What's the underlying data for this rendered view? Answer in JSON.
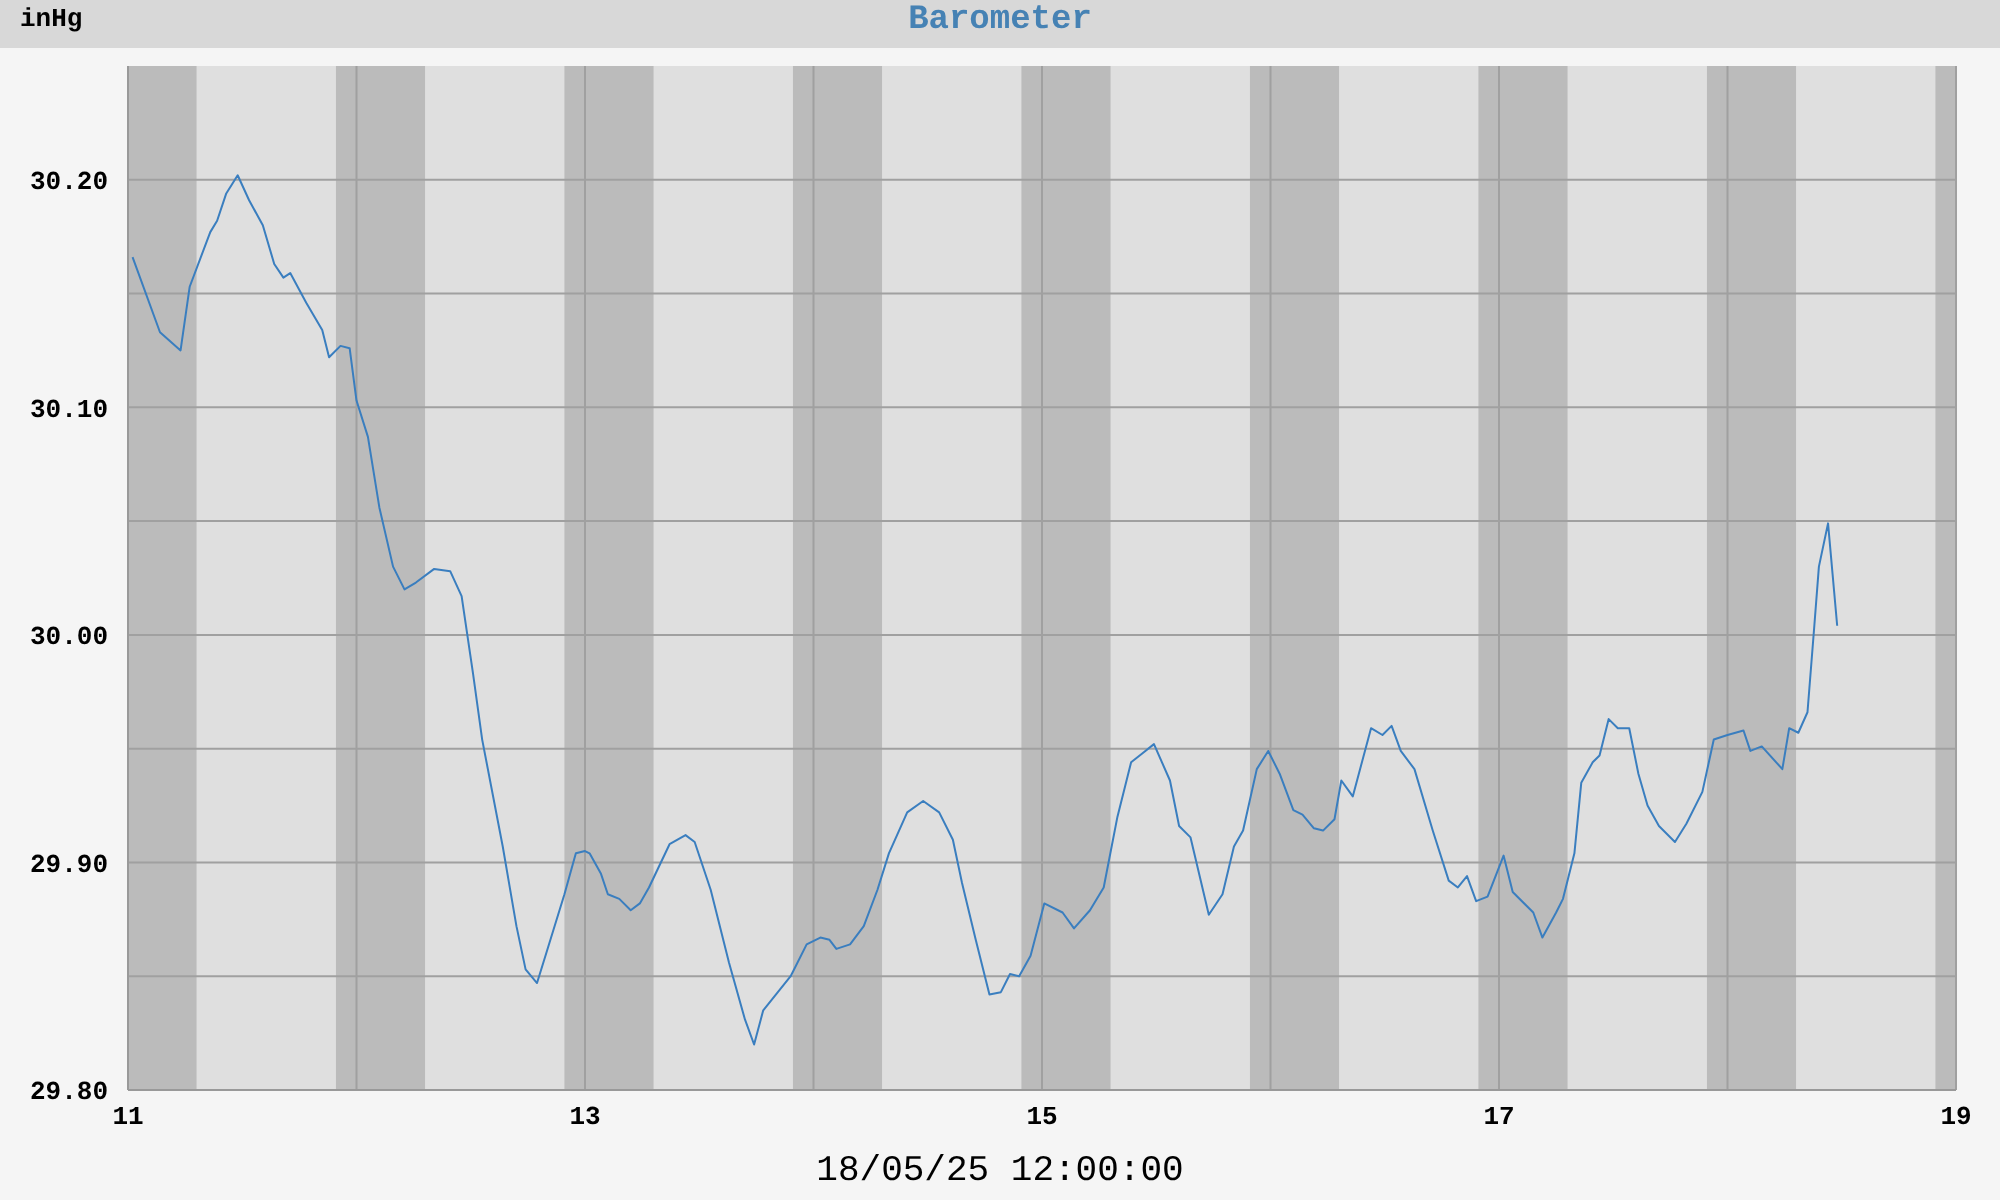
{
  "chart_data": {
    "type": "line",
    "title": "Barometer",
    "ylabel": "inHg",
    "xlabel": "18/05/25 12:00:00",
    "xlim": [
      11,
      19
    ],
    "xticks": [
      11,
      {
        "value": 12,
        "label": null
      },
      13,
      {
        "value": 14,
        "label": null
      },
      15,
      {
        "value": 16,
        "label": null
      },
      17,
      {
        "value": 18,
        "label": null
      },
      19
    ],
    "ylim": [
      29.8,
      30.25
    ],
    "yticks": [
      {
        "value": 29.8,
        "label": "29.80"
      },
      {
        "value": 29.85,
        "label": null
      },
      {
        "value": 29.9,
        "label": "29.90"
      },
      {
        "value": 29.95,
        "label": null
      },
      {
        "value": 30.0,
        "label": "30.00"
      },
      {
        "value": 30.05,
        "label": null
      },
      {
        "value": 30.1,
        "label": "30.10"
      },
      {
        "value": 30.15,
        "label": null
      },
      {
        "value": 30.2,
        "label": "30.20"
      }
    ],
    "grid": true,
    "legend": false,
    "marker": "none",
    "line_style": "solid",
    "bands": [
      {
        "axis": "x",
        "from": 11,
        "to": 11.3,
        "color": "#bbbbbb"
      },
      {
        "axis": "x",
        "from": 11.91,
        "to": 12.3,
        "color": "#bbbbbb"
      },
      {
        "axis": "x",
        "from": 12.91,
        "to": 13.3,
        "color": "#bbbbbb"
      },
      {
        "axis": "x",
        "from": 13.91,
        "to": 14.3,
        "color": "#bbbbbb"
      },
      {
        "axis": "x",
        "from": 14.91,
        "to": 15.3,
        "color": "#bbbbbb"
      },
      {
        "axis": "x",
        "from": 15.91,
        "to": 16.3,
        "color": "#bbbbbb"
      },
      {
        "axis": "x",
        "from": 16.91,
        "to": 17.3,
        "color": "#bbbbbb"
      },
      {
        "axis": "x",
        "from": 17.91,
        "to": 18.3,
        "color": "#bbbbbb"
      },
      {
        "axis": "x",
        "from": 18.91,
        "to": 19,
        "color": "#bbbbbb"
      }
    ],
    "series": [
      {
        "color": "#3a7ebf",
        "x": [
          11.02,
          11.14,
          11.23,
          11.27,
          11.36,
          11.39,
          11.43,
          11.48,
          11.53,
          11.59,
          11.64,
          11.68,
          11.71,
          11.78,
          11.85,
          11.88,
          11.93,
          11.97,
          12.0,
          12.05,
          12.1,
          12.16,
          12.21,
          12.26,
          12.34,
          12.41,
          12.46,
          12.51,
          12.55,
          12.64,
          12.7,
          12.74,
          12.79,
          12.83,
          12.91,
          12.96,
          13.0,
          13.02,
          13.07,
          13.1,
          13.15,
          13.2,
          13.24,
          13.28,
          13.37,
          13.44,
          13.48,
          13.55,
          13.63,
          13.7,
          13.74,
          13.78,
          13.9,
          13.97,
          14.03,
          14.07,
          14.1,
          14.16,
          14.22,
          14.28,
          14.33,
          14.41,
          14.48,
          14.55,
          14.61,
          14.65,
          14.71,
          14.77,
          14.82,
          14.86,
          14.9,
          14.95,
          15.01,
          15.09,
          15.14,
          15.21,
          15.27,
          15.33,
          15.39,
          15.44,
          15.49,
          15.56,
          15.6,
          15.65,
          15.73,
          15.79,
          15.84,
          15.88,
          15.94,
          15.99,
          16.04,
          16.1,
          16.14,
          16.19,
          16.23,
          16.28,
          16.31,
          16.36,
          16.44,
          16.49,
          16.53,
          16.57,
          16.63,
          16.71,
          16.78,
          16.82,
          16.86,
          16.9,
          16.95,
          17.02,
          17.06,
          17.15,
          17.19,
          17.25,
          17.28,
          17.33,
          17.36,
          17.41,
          17.44,
          17.48,
          17.52,
          17.57,
          17.61,
          17.65,
          17.7,
          17.77,
          17.82,
          17.89,
          17.94,
          18.0,
          18.07,
          18.1,
          18.15,
          18.24,
          18.27,
          18.31,
          18.35,
          18.38,
          18.4,
          18.44,
          18.48
        ],
        "values": [
          30.166,
          30.133,
          30.125,
          30.153,
          30.177,
          30.182,
          30.194,
          30.202,
          30.191,
          30.18,
          30.163,
          30.157,
          30.159,
          30.146,
          30.134,
          30.122,
          30.127,
          30.126,
          30.103,
          30.087,
          30.056,
          30.03,
          30.02,
          30.023,
          30.029,
          30.028,
          30.017,
          29.983,
          29.954,
          29.907,
          29.872,
          29.853,
          29.847,
          29.86,
          29.886,
          29.904,
          29.905,
          29.904,
          29.895,
          29.886,
          29.884,
          29.879,
          29.882,
          29.889,
          29.908,
          29.912,
          29.909,
          29.888,
          29.856,
          29.831,
          29.82,
          29.835,
          29.85,
          29.864,
          29.867,
          29.866,
          29.862,
          29.864,
          29.872,
          29.888,
          29.904,
          29.922,
          29.927,
          29.922,
          29.91,
          29.891,
          29.866,
          29.842,
          29.843,
          29.851,
          29.85,
          29.859,
          29.882,
          29.878,
          29.871,
          29.879,
          29.889,
          29.92,
          29.944,
          29.948,
          29.952,
          29.936,
          29.916,
          29.911,
          29.877,
          29.886,
          29.907,
          29.914,
          29.941,
          29.949,
          29.939,
          29.923,
          29.921,
          29.915,
          29.914,
          29.919,
          29.936,
          29.929,
          29.959,
          29.956,
          29.96,
          29.949,
          29.941,
          29.914,
          29.892,
          29.889,
          29.894,
          29.883,
          29.885,
          29.903,
          29.887,
          29.878,
          29.867,
          29.878,
          29.884,
          29.904,
          29.935,
          29.944,
          29.947,
          29.963,
          29.959,
          29.959,
          29.939,
          29.925,
          29.916,
          29.909,
          29.917,
          29.931,
          29.954,
          29.956,
          29.958,
          29.949,
          29.951,
          29.941,
          29.959,
          29.957,
          29.966,
          30.004,
          30.03,
          30.049,
          30.004
        ]
      }
    ]
  }
}
